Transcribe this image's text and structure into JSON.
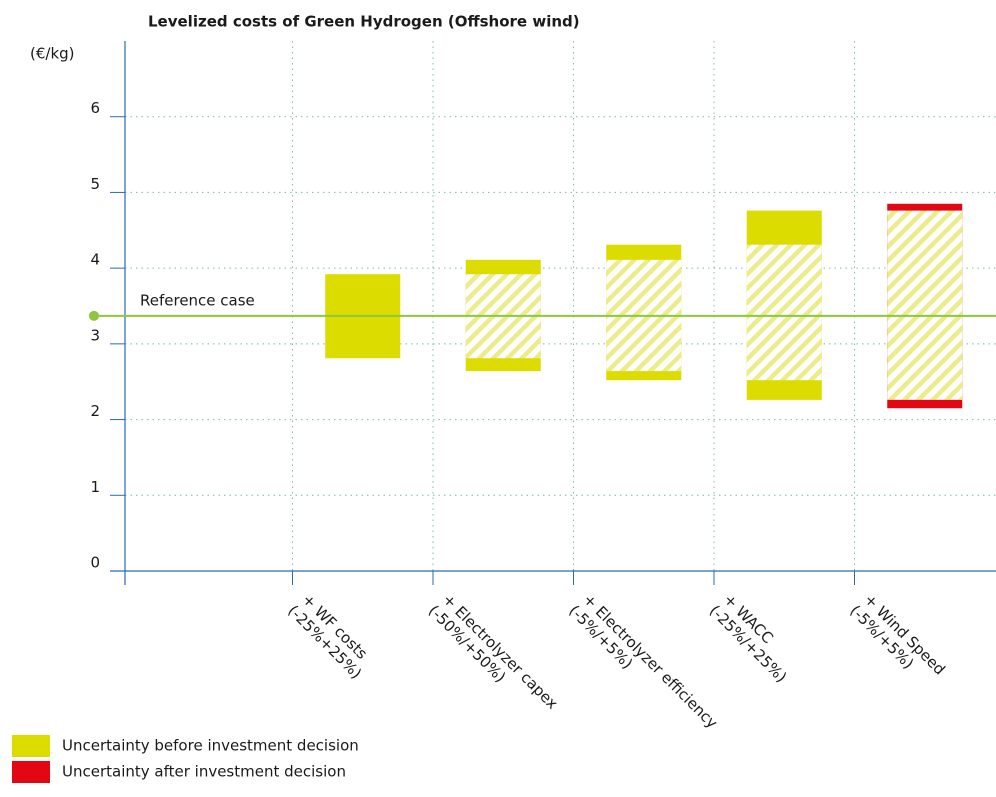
{
  "chart_data": {
    "type": "floating-bar",
    "title": "Levelized costs of Green Hydrogen (Offshore wind)",
    "y_label": "(€/kg)",
    "ylim": [
      0,
      7
    ],
    "yticks": [
      0,
      1,
      2,
      3,
      4,
      5,
      6
    ],
    "grid": true,
    "categories": [
      null,
      "+ WF costs",
      "+ Electrolyzer capex",
      "+ Electrolyzer efficiency",
      "+ WACC",
      "+ Wind Speed"
    ],
    "category_ranges": [
      null,
      "(-25%+25%)",
      "(-50%/+50%)",
      "(-5%/+5%)",
      "(-25%/+25%)",
      "(-5%/+5%)"
    ],
    "series": [
      {
        "name": "Uncertainty before investment decision",
        "color": "#dcdc00",
        "low": [
          null,
          2.81,
          2.64,
          2.52,
          2.26,
          null
        ],
        "high": [
          null,
          3.92,
          4.11,
          4.31,
          4.76,
          null
        ]
      },
      {
        "name": "Uncertainty after investment decision",
        "color": "#e30613",
        "low": [
          null,
          null,
          null,
          null,
          null,
          2.15
        ],
        "high": [
          null,
          null,
          null,
          null,
          null,
          4.85
        ]
      }
    ],
    "hatched_low": [
      null,
      null,
      2.81,
      2.64,
      2.52,
      2.26
    ],
    "hatched_high": [
      null,
      null,
      3.92,
      4.11,
      4.31,
      4.76
    ],
    "reference": {
      "label": "Reference case",
      "value": 3.37,
      "color": "#8dc63f"
    }
  }
}
